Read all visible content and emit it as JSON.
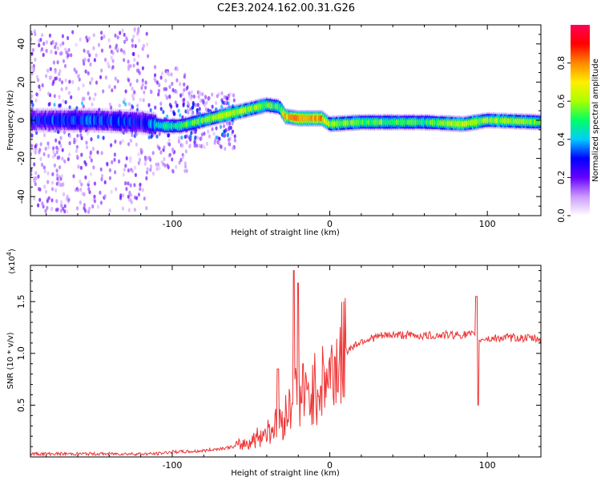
{
  "title": "C2E3.2024.162.00.31.G26",
  "chart_data": [
    {
      "type": "heatmap",
      "xlabel": "Height of straight line (km)",
      "ylabel": "Frequency (Hz)",
      "xlim": [
        -190,
        134
      ],
      "ylim": [
        -50,
        50
      ],
      "x_ticks": [
        -100,
        0,
        100
      ],
      "x_tick_labels": [
        "-100",
        "0",
        "100"
      ],
      "y_ticks": [
        -40,
        -20,
        0,
        20,
        40
      ],
      "y_tick_labels": [
        "-40",
        "-20",
        "0",
        "20",
        "40"
      ],
      "colorbar": {
        "label": "Normalized spectral amplitude",
        "range": [
          0,
          1
        ],
        "ticks": [
          0,
          0.2,
          0.4,
          0.6,
          0.8
        ],
        "tick_labels": [
          "0.0",
          "0.2",
          "0.4",
          "0.6",
          "0.8"
        ],
        "colors": [
          "#ffffff",
          "#cc99ff",
          "#6600ff",
          "#0000ff",
          "#00ccff",
          "#00ff66",
          "#aaff00",
          "#ffee00",
          "#ff8800",
          "#ff0000",
          "#ff0055"
        ]
      },
      "ridge": {
        "x": [
          -190,
          -150,
          -120,
          -105,
          -95,
          -80,
          -65,
          -50,
          -40,
          -32,
          -28,
          -20,
          -5,
          0,
          20,
          60,
          85,
          100,
          134
        ],
        "freq": [
          0,
          0,
          -1,
          -3,
          -3,
          0,
          3,
          6,
          8,
          7,
          2,
          1,
          1,
          -2,
          -1,
          -1,
          -2,
          0,
          -1
        ],
        "amplitude": [
          0.3,
          0.35,
          0.3,
          0.45,
          0.5,
          0.55,
          0.65,
          0.6,
          0.55,
          0.5,
          0.75,
          0.8,
          0.8,
          0.6,
          0.55,
          0.5,
          0.65,
          0.6,
          0.55
        ]
      },
      "grid": false,
      "legend": "colorbar right"
    },
    {
      "type": "line",
      "xlabel": "Height of straight line (km)",
      "ylabel": "SNR (10 * v/v)",
      "y_scale_label": "(x10",
      "y_scale_exponent": "4",
      "xlim": [
        -190,
        134
      ],
      "ylim": [
        0,
        1.85
      ],
      "x_ticks": [
        -100,
        0,
        100
      ],
      "x_tick_labels": [
        "-100",
        "0",
        "100"
      ],
      "y_ticks": [
        0.5,
        1.0,
        1.5
      ],
      "y_tick_labels": [
        "0.5",
        "1.0",
        "1.5"
      ],
      "line_color": "#ee3333",
      "series": [
        {
          "x": [
            -190,
            -170,
            -150,
            -130,
            -110,
            -100,
            -90,
            -80,
            -70,
            -60,
            -50,
            -45,
            -40,
            -35,
            -30,
            -25,
            -22,
            -20,
            -15,
            -10,
            -5,
            0,
            5,
            10,
            20,
            30,
            40,
            60,
            80,
            90,
            93,
            95,
            97,
            100,
            110,
            120,
            134
          ],
          "values": [
            0.03,
            0.03,
            0.03,
            0.03,
            0.03,
            0.05,
            0.05,
            0.06,
            0.08,
            0.1,
            0.15,
            0.2,
            0.25,
            0.3,
            0.35,
            0.5,
            0.6,
            0.55,
            0.55,
            0.65,
            0.72,
            0.8,
            0.92,
            1.02,
            1.12,
            1.16,
            1.18,
            1.17,
            1.18,
            1.18,
            1.15,
            1.12,
            1.15,
            1.14,
            1.15,
            1.15,
            1.14
          ]
        }
      ],
      "spikes": [
        {
          "x": -33,
          "value": 0.85
        },
        {
          "x": -23,
          "value": 1.8
        },
        {
          "x": -20,
          "value": 1.68
        },
        {
          "x": -17,
          "value": 0.9
        },
        {
          "x": 93,
          "value": 1.55
        },
        {
          "x": 94,
          "value": 0.5
        }
      ],
      "grid": false
    }
  ]
}
